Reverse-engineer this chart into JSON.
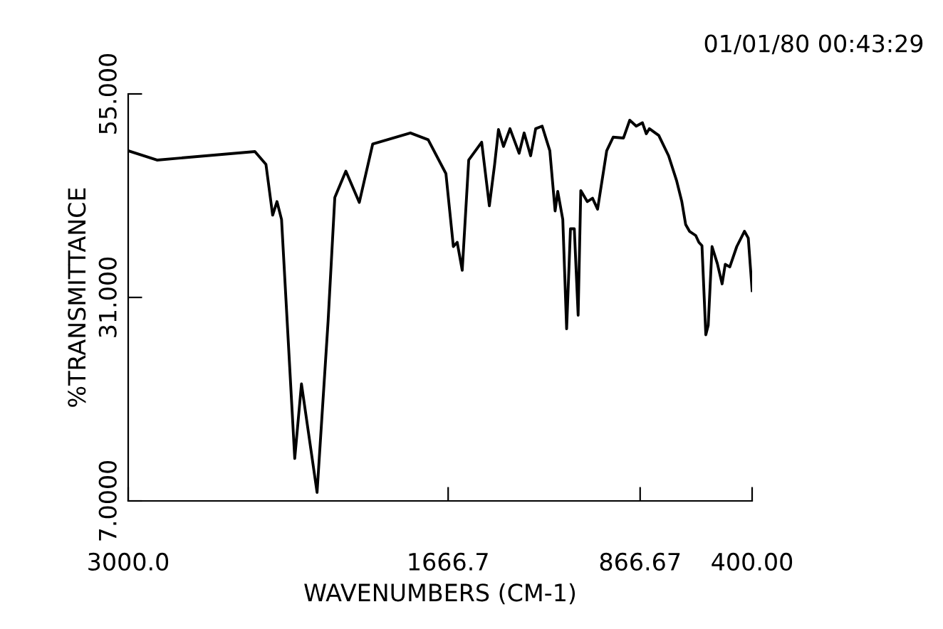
{
  "chart_data": {
    "type": "line",
    "xlabel": "WAVENUMBERS (CM-1)",
    "ylabel": "%TRANSMITTANCE",
    "annotations": [
      "01/01/80 00:43:29"
    ],
    "xlim": [
      3000,
      400
    ],
    "ylim": [
      7,
      55
    ],
    "xticks": [
      {
        "value": 3000,
        "label": "3000.0"
      },
      {
        "value": 1666.7,
        "label": "1666.7"
      },
      {
        "value": 866.67,
        "label": "866.67"
      },
      {
        "value": 400,
        "label": "400.00"
      }
    ],
    "yticks": [
      {
        "value": 7,
        "label": "7.0000"
      },
      {
        "value": 31,
        "label": "31.000"
      },
      {
        "value": 55,
        "label": "55.000"
      }
    ],
    "grid": false,
    "marker": "none",
    "line_style": "solid",
    "series": [
      {
        "color": "#000000",
        "x": [
          3000,
          2880,
          2472,
          2426,
          2398,
          2380,
          2361,
          2306,
          2278,
          2213,
          2167,
          2139,
          2093,
          2037,
          1981,
          1824,
          1750,
          1676,
          1645,
          1629,
          1608,
          1581,
          1527,
          1495,
          1473,
          1457,
          1436,
          1409,
          1371,
          1350,
          1323,
          1302,
          1275,
          1243,
          1221,
          1210,
          1189,
          1173,
          1157,
          1141,
          1125,
          1114,
          1087,
          1065,
          1044,
          1006,
          979,
          936,
          910,
          883,
          857,
          841,
          828,
          789,
          748,
          715,
          693,
          677,
          661,
          635,
          622,
          609,
          593,
          583,
          567,
          545,
          525,
          512,
          493,
          464,
          432,
          416,
          400
        ],
        "values": [
          48.3,
          47.2,
          48.2,
          46.7,
          40.7,
          42.3,
          40.2,
          12.0,
          20.8,
          8.0,
          28.2,
          42.8,
          45.9,
          42.2,
          49.1,
          50.4,
          49.6,
          45.6,
          37.0,
          37.5,
          34.2,
          47.2,
          49.3,
          41.8,
          46.7,
          50.8,
          48.8,
          50.9,
          48.0,
          50.4,
          47.7,
          50.9,
          51.2,
          48.3,
          41.2,
          43.5,
          40.2,
          27.3,
          39.1,
          39.1,
          28.9,
          43.6,
          42.3,
          42.7,
          41.4,
          48.3,
          49.9,
          49.8,
          51.9,
          51.2,
          51.6,
          50.3,
          50.9,
          50.1,
          47.7,
          44.8,
          42.3,
          39.6,
          38.8,
          38.3,
          37.5,
          37.1,
          26.6,
          27.7,
          37.0,
          35.0,
          32.6,
          34.9,
          34.6,
          37.0,
          38.8,
          38.0,
          31.8
        ]
      }
    ]
  }
}
